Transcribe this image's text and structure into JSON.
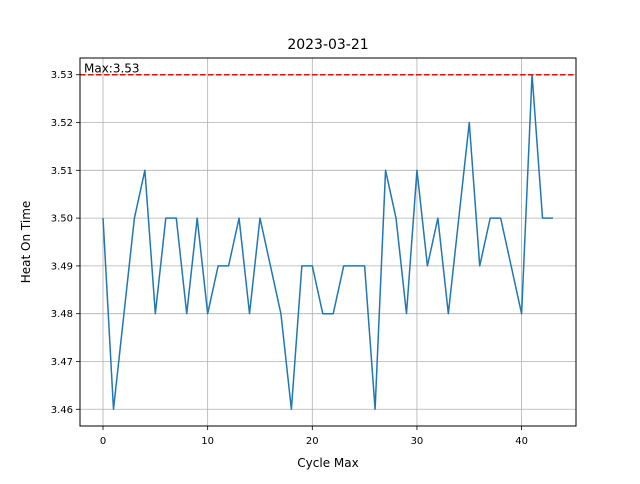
{
  "chart_data": {
    "type": "line",
    "title": "2023-03-21",
    "xlabel": "Cycle Max",
    "ylabel": "Heat On Time",
    "xlim": [
      -2.2,
      45.2
    ],
    "ylim": [
      3.4565,
      3.5335
    ],
    "xticks": [
      0,
      10,
      20,
      30,
      40
    ],
    "yticks": [
      3.46,
      3.47,
      3.48,
      3.49,
      3.5,
      3.51,
      3.52,
      3.53
    ],
    "xtick_labels": [
      "0",
      "10",
      "20",
      "30",
      "40"
    ],
    "ytick_labels": [
      "3.46",
      "3.47",
      "3.48",
      "3.49",
      "3.50",
      "3.51",
      "3.52",
      "3.53"
    ],
    "grid": true,
    "series": [
      {
        "color": "#1f77b4",
        "x": [
          0,
          1,
          2,
          3,
          4,
          5,
          6,
          7,
          8,
          9,
          10,
          11,
          12,
          13,
          14,
          15,
          16,
          17,
          18,
          19,
          20,
          21,
          22,
          23,
          24,
          25,
          26,
          27,
          28,
          29,
          30,
          31,
          32,
          33,
          34,
          35,
          36,
          37,
          38,
          39,
          40,
          41,
          42,
          43
        ],
        "values": [
          3.5,
          3.46,
          3.48,
          3.5,
          3.51,
          3.48,
          3.5,
          3.5,
          3.48,
          3.5,
          3.48,
          3.49,
          3.49,
          3.5,
          3.48,
          3.5,
          3.49,
          3.48,
          3.46,
          3.49,
          3.49,
          3.48,
          3.48,
          3.49,
          3.49,
          3.49,
          3.46,
          3.51,
          3.5,
          3.48,
          3.51,
          3.49,
          3.5,
          3.48,
          3.5,
          3.52,
          3.49,
          3.5,
          3.5,
          3.49,
          3.48,
          3.53,
          3.5,
          3.5
        ]
      }
    ],
    "hline": {
      "y": 3.53,
      "color": "#ff0000",
      "style": "dashed"
    },
    "annotation": {
      "text": "Max:3.53"
    }
  }
}
